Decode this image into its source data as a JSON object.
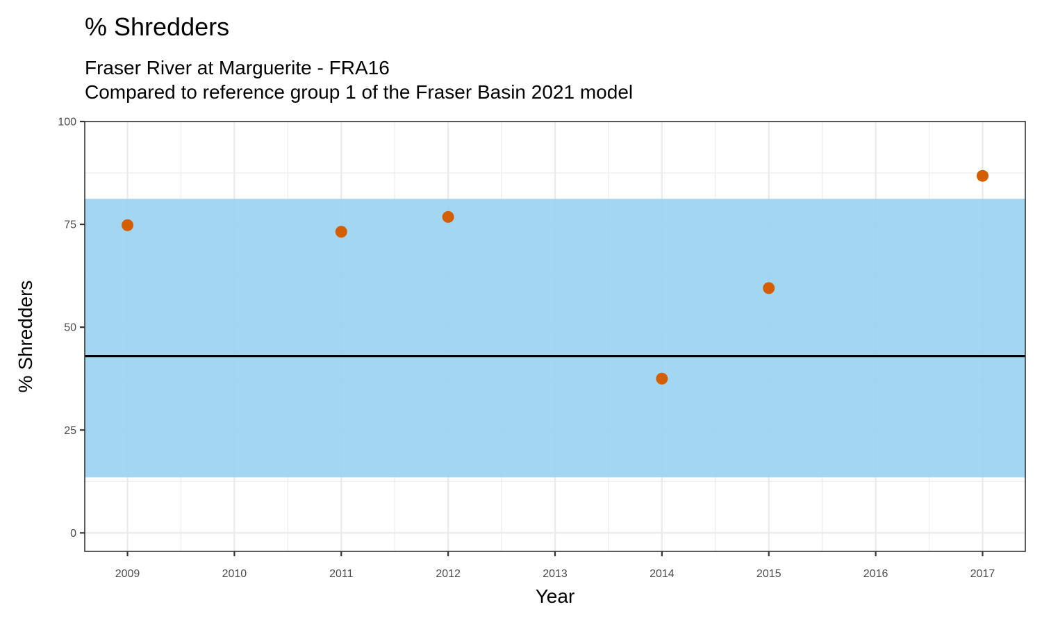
{
  "chart_data": {
    "type": "scatter",
    "title": "% Shredders",
    "subtitle_lines": [
      "Fraser River at Marguerite - FRA16",
      "Compared to reference group 1 of the Fraser Basin 2021 model"
    ],
    "xlabel": "Year",
    "ylabel": "% Shredders",
    "xlim": [
      2008.6,
      2017.4
    ],
    "ylim": [
      -4.5,
      100
    ],
    "x_ticks": [
      2009,
      2010,
      2011,
      2012,
      2013,
      2014,
      2015,
      2016,
      2017
    ],
    "y_ticks": [
      0,
      25,
      50,
      75,
      100
    ],
    "grid": true,
    "reference_band": {
      "lower": 13.5,
      "upper": 81.2,
      "color": "#9bd2f0"
    },
    "reference_line": {
      "value": 43.0,
      "color": "#000000"
    },
    "point_color": "#d55e00",
    "points": [
      {
        "x": 2009,
        "y": 74.8
      },
      {
        "x": 2011,
        "y": 73.2
      },
      {
        "x": 2012,
        "y": 76.8
      },
      {
        "x": 2014,
        "y": 37.5
      },
      {
        "x": 2015,
        "y": 59.5
      },
      {
        "x": 2017,
        "y": 86.8
      }
    ]
  }
}
